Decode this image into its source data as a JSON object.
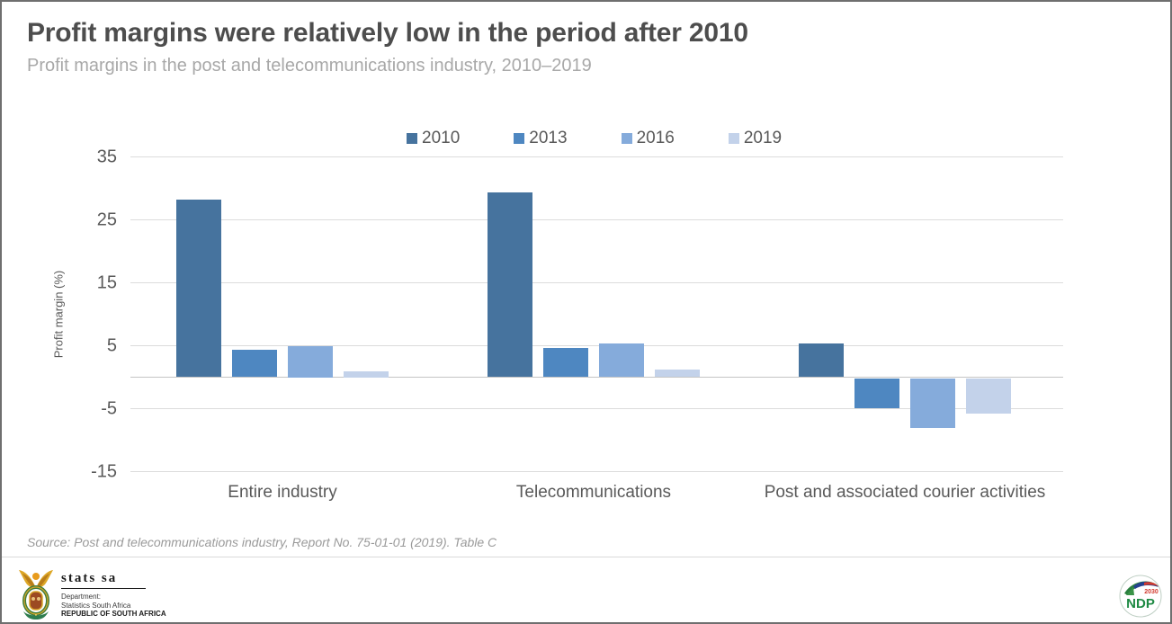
{
  "header": {
    "title": "Profit margins were relatively low in the period after 2010",
    "subtitle": "Profit margins in the post and telecommunications industry, 2010–2019"
  },
  "chart_data": {
    "type": "bar",
    "categories": [
      "Entire industry",
      "Telecommunications",
      "Post and associated courier activities"
    ],
    "series": [
      {
        "name": "2010",
        "color": "#46739e",
        "values": [
          28.2,
          29.3,
          5.3
        ]
      },
      {
        "name": "2013",
        "color": "#4e87c1",
        "values": [
          4.3,
          4.6,
          -4.8
        ]
      },
      {
        "name": "2016",
        "color": "#85abdb",
        "values": [
          5.0,
          5.4,
          -7.9
        ]
      },
      {
        "name": "2019",
        "color": "#c3d2ea",
        "values": [
          1.0,
          1.2,
          -5.6
        ]
      }
    ],
    "title": "Profit margins were relatively low in the period after 2010",
    "xlabel": "",
    "ylabel": "Profit margin (%)",
    "yticks": [
      35,
      25,
      15,
      5,
      -5,
      -15
    ],
    "ylim": [
      -15,
      35
    ],
    "grid": true,
    "legend_position": "top"
  },
  "source": "Source: Post and telecommunications industry, Report No. 75-01-01 (2019). Table C",
  "footer": {
    "statssa": {
      "name": "stats sa",
      "dept": "Department:",
      "org": "Statistics South Africa",
      "country": "REPUBLIC OF SOUTH AFRICA"
    },
    "ndp": {
      "acronym": "NDP",
      "year": "2030"
    }
  }
}
